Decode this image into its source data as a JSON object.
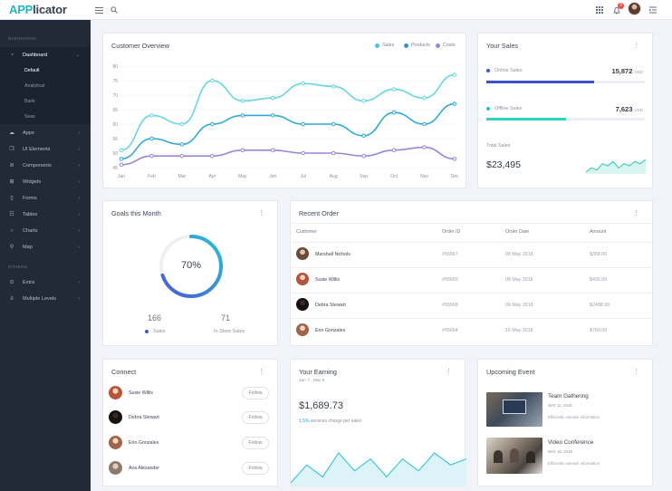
{
  "app": {
    "logo_part1": "APP",
    "logo_part2": "licator",
    "badge_count": "3"
  },
  "sidebar": {
    "section_navigation": "NAVIGATION",
    "section_others": "OTHERS",
    "dashboard": "Dashboard",
    "sub_items": [
      "Default",
      "Analytical",
      "Bank",
      "Seas"
    ],
    "items": [
      "Apps",
      "UI Elements",
      "Components",
      "Widgets",
      "Forms",
      "Tables",
      "Charts",
      "Map"
    ],
    "other_items": [
      "Extra",
      "Multiple Levels"
    ]
  },
  "overview": {
    "title": "Customer Overview",
    "legend": [
      {
        "name": "Sales",
        "color": "#45c6e0"
      },
      {
        "name": "Products",
        "color": "#3a8fc9"
      },
      {
        "name": "Costs",
        "color": "#9b86d8"
      }
    ]
  },
  "chart_data": {
    "type": "line",
    "title": "Customer Overview",
    "x": [
      "Jan",
      "Feb",
      "Mar",
      "Apr",
      "May",
      "Jun",
      "Jul",
      "Aug",
      "Sep",
      "Oct",
      "Nov",
      "Dec"
    ],
    "y_ticks": [
      45,
      50,
      55,
      60,
      65,
      70,
      75,
      80
    ],
    "ylim": [
      45,
      80
    ],
    "series": [
      {
        "name": "Sales",
        "color": "#67d6e3",
        "values": [
          51,
          63,
          60,
          75,
          68,
          69,
          74,
          73,
          68,
          72,
          69,
          77
        ]
      },
      {
        "name": "Products",
        "color": "#2fa9d6",
        "values": [
          48,
          55,
          53,
          60,
          63,
          63,
          60,
          60,
          56,
          64,
          60,
          67
        ]
      },
      {
        "name": "Costs",
        "color": "#9b86d8",
        "values": [
          46,
          49,
          49,
          49,
          51,
          51,
          50,
          50,
          49,
          51,
          52,
          48
        ]
      }
    ]
  },
  "your_sales": {
    "title": "Your Sales",
    "online_label": "Online Sales",
    "online_value": "15,872",
    "online_unit": "USD",
    "online_progress": 0.68,
    "offline_label": "Offline Sales",
    "offline_value": "7,623",
    "offline_unit": "USD",
    "offline_progress": 0.5,
    "total_label": "Total Sales",
    "total_value": "$23,495",
    "sparkline": [
      4,
      6,
      5,
      8,
      7,
      9,
      6,
      8,
      7,
      9,
      8,
      10
    ]
  },
  "goals": {
    "title": "Goals this Month",
    "percent_label": "70%",
    "percent": 0.7,
    "sales_value": "166",
    "sales_label": "Sales",
    "instore_value": "71",
    "instore_label": "In-Store Sales"
  },
  "orders": {
    "title": "Recent Order",
    "headers": [
      "Customer",
      "Order ID",
      "Order Date",
      "Amount"
    ],
    "rows": [
      {
        "name": "Marshall Nichols",
        "id": "#55667",
        "date": "08 May 2018",
        "amount": "$358.00"
      },
      {
        "name": "Susie Willis",
        "id": "#55665",
        "date": "08 May 2018",
        "amount": "$435.00"
      },
      {
        "name": "Debra Stewart",
        "id": "#55668",
        "date": "09 May 2018",
        "amount": "$2488.00"
      },
      {
        "name": "Erin Gonzales",
        "id": "#55664",
        "date": "16 May 2018",
        "amount": "$760.00"
      }
    ]
  },
  "connect": {
    "title": "Connect",
    "people": [
      "Susie Willis",
      "Debra Stewart",
      "Erin Gonzales",
      "Ava Alexander"
    ],
    "follow_label": "Follow"
  },
  "earning": {
    "title": "Your Earning",
    "period": "Jan 7 - Mar 6",
    "value": "$1,689.73",
    "change_pct": "1.5%",
    "change_text": "services charge per sales",
    "sparkline": [
      2,
      5,
      3,
      7,
      4,
      6,
      3,
      6,
      4,
      7,
      5,
      6
    ]
  },
  "events": {
    "title": "Upcoming Event",
    "items": [
      {
        "title": "Team Gathering",
        "date": "MAY 11, 2018",
        "desc": "Efficiently unleash information"
      },
      {
        "title": "Video Conference",
        "date": "MAY 16, 2018",
        "desc": "Efficiently unleash information"
      }
    ]
  }
}
